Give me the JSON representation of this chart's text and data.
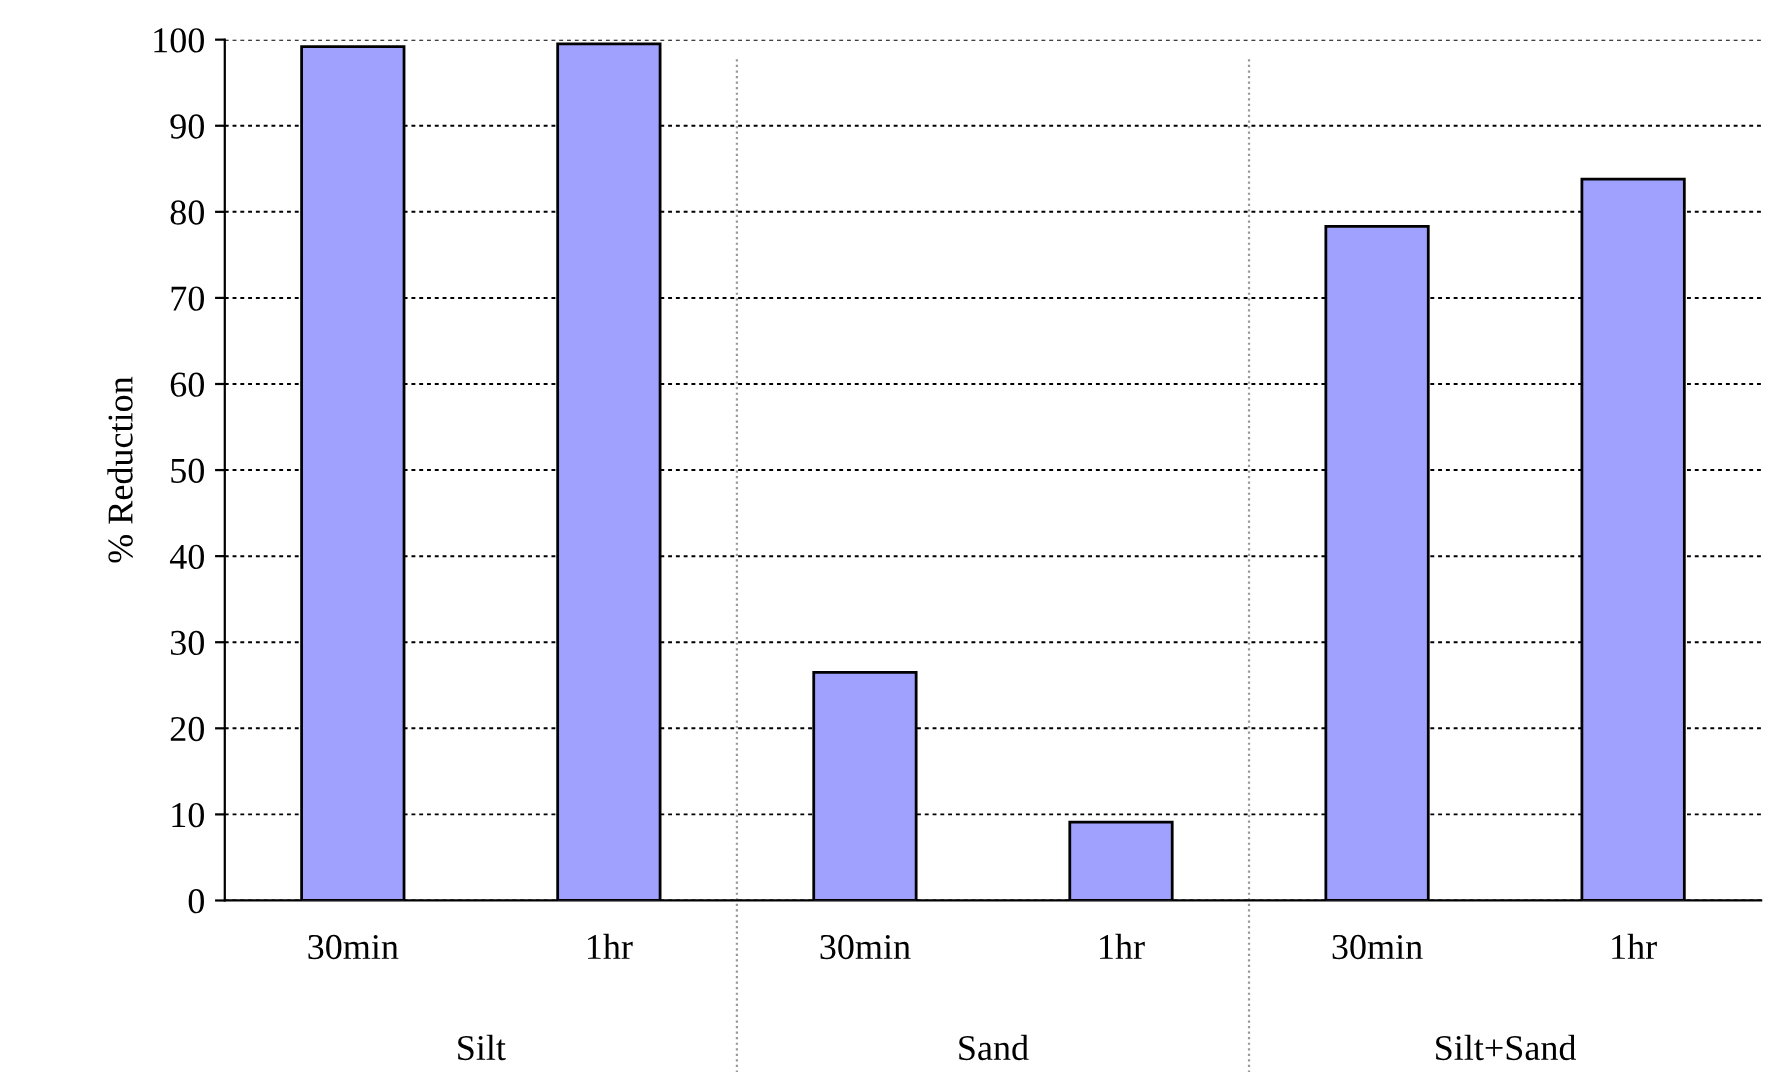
{
  "chart_data": {
    "type": "bar",
    "ylabel": "% Reduction",
    "categories": [
      "30min",
      "1hr",
      "30min",
      "1hr",
      "30min",
      "1hr"
    ],
    "values": [
      99.2,
      99.5,
      26.5,
      9.1,
      78.3,
      83.8
    ],
    "color": "#a0a0ff",
    "ylim": [
      0,
      100
    ],
    "yticks": [
      0,
      10,
      20,
      30,
      40,
      50,
      60,
      70,
      80,
      90,
      100
    ],
    "grid": "y",
    "annotations": [
      "Silt",
      "Sand",
      "Silt+Sand"
    ]
  }
}
